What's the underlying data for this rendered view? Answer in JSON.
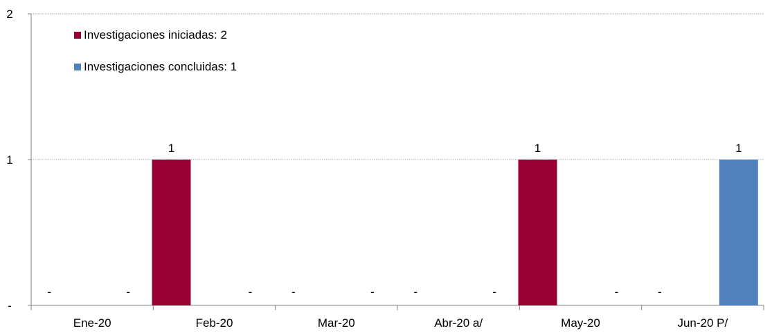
{
  "chart_data": {
    "type": "bar",
    "categories": [
      "Ene-20",
      "Feb-20",
      "Mar-20",
      "Abr-20 a/",
      "May-20",
      "Jun-20 P/"
    ],
    "series": [
      {
        "name": "Investigaciones iniciadas: 2",
        "color": "#990033",
        "values": [
          0,
          1,
          0,
          0,
          1,
          0
        ]
      },
      {
        "name": "Investigaciones concluidas: 1",
        "color": "#4F81BD",
        "values": [
          0,
          0,
          0,
          0,
          0,
          1
        ]
      }
    ],
    "y_tick_labels": [
      "-",
      "1",
      "2"
    ],
    "ylim": [
      0,
      2
    ],
    "zero_label": "-",
    "grid": true,
    "legend_position": "top-left"
  }
}
